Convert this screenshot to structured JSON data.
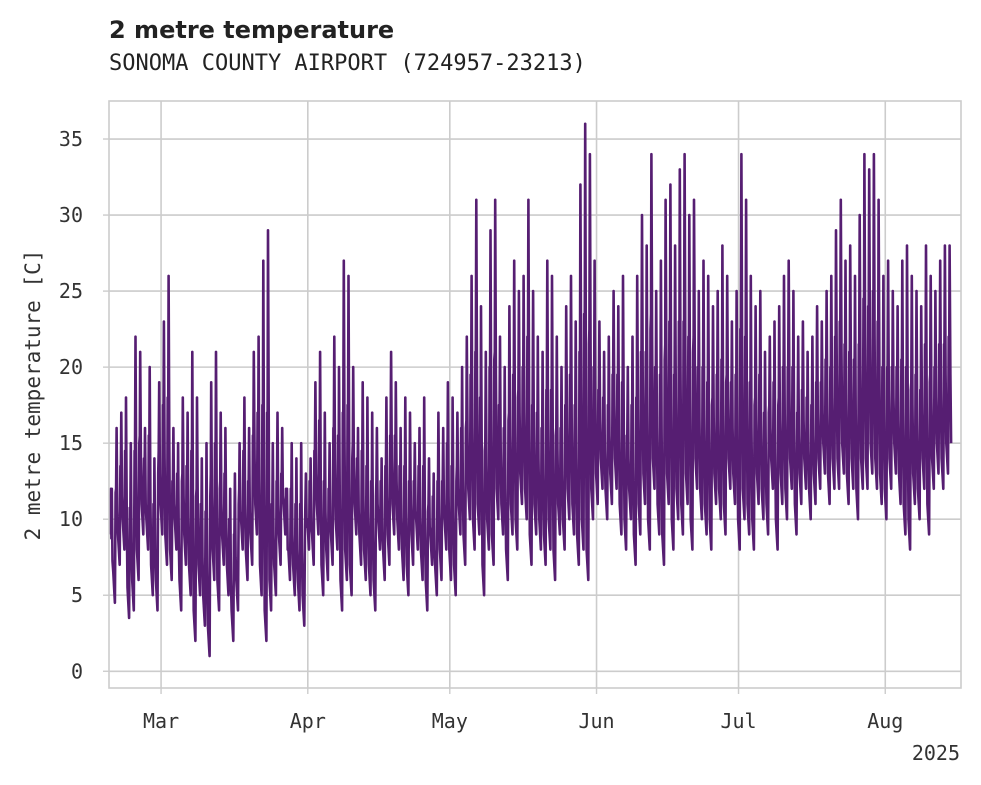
{
  "chart_data": {
    "type": "line",
    "title": "2 metre temperature",
    "subtitle": "SONOMA COUNTY AIRPORT (724957-23213)",
    "xlabel": "",
    "ylabel": "2 metre temperature [C]",
    "x_tick_labels": [
      "Mar",
      "Apr",
      "May",
      "Jun",
      "Jul",
      "Aug"
    ],
    "x_tick_dates": [
      "2025-03-01",
      "2025-04-01",
      "2025-05-01",
      "2025-06-01",
      "2025-07-01",
      "2025-08-01"
    ],
    "x_offset_label": "2025",
    "xlim": [
      "2025-02-18",
      "2025-08-17"
    ],
    "y_ticks": [
      0,
      5,
      10,
      15,
      20,
      25,
      30,
      35
    ],
    "ylim": [
      -1.1,
      37.5
    ],
    "grid": true,
    "series_color": "#561e72",
    "series": [
      {
        "x": [
          "2025-02-18",
          "2025-02-19",
          "2025-02-20",
          "2025-02-21",
          "2025-02-22",
          "2025-02-23",
          "2025-02-24",
          "2025-02-25",
          "2025-02-26",
          "2025-02-27",
          "2025-02-28",
          "2025-03-01",
          "2025-03-02",
          "2025-03-03",
          "2025-03-04",
          "2025-03-05",
          "2025-03-06",
          "2025-03-07",
          "2025-03-08",
          "2025-03-09",
          "2025-03-10",
          "2025-03-11",
          "2025-03-12",
          "2025-03-13",
          "2025-03-14",
          "2025-03-15",
          "2025-03-16",
          "2025-03-17",
          "2025-03-18",
          "2025-03-19",
          "2025-03-20",
          "2025-03-21",
          "2025-03-22",
          "2025-03-23",
          "2025-03-24",
          "2025-03-25",
          "2025-03-26",
          "2025-03-27",
          "2025-03-28",
          "2025-03-29",
          "2025-03-30",
          "2025-03-31",
          "2025-04-01",
          "2025-04-02",
          "2025-04-03",
          "2025-04-04",
          "2025-04-05",
          "2025-04-06",
          "2025-04-07",
          "2025-04-08",
          "2025-04-09",
          "2025-04-10",
          "2025-04-11",
          "2025-04-12",
          "2025-04-13",
          "2025-04-14",
          "2025-04-15",
          "2025-04-16",
          "2025-04-17",
          "2025-04-18",
          "2025-04-19",
          "2025-04-20",
          "2025-04-21",
          "2025-04-22",
          "2025-04-23",
          "2025-04-24",
          "2025-04-25",
          "2025-04-26",
          "2025-04-27",
          "2025-04-28",
          "2025-04-29",
          "2025-04-30",
          "2025-05-01",
          "2025-05-02",
          "2025-05-03",
          "2025-05-04",
          "2025-05-05",
          "2025-05-06",
          "2025-05-07",
          "2025-05-08",
          "2025-05-09",
          "2025-05-10",
          "2025-05-11",
          "2025-05-12",
          "2025-05-13",
          "2025-05-14",
          "2025-05-15",
          "2025-05-16",
          "2025-05-17",
          "2025-05-18",
          "2025-05-19",
          "2025-05-20",
          "2025-05-21",
          "2025-05-22",
          "2025-05-23",
          "2025-05-24",
          "2025-05-25",
          "2025-05-26",
          "2025-05-27",
          "2025-05-28",
          "2025-05-29",
          "2025-05-30",
          "2025-05-31",
          "2025-06-01",
          "2025-06-02",
          "2025-06-03",
          "2025-06-04",
          "2025-06-05",
          "2025-06-06",
          "2025-06-07",
          "2025-06-08",
          "2025-06-09",
          "2025-06-10",
          "2025-06-11",
          "2025-06-12",
          "2025-06-13",
          "2025-06-14",
          "2025-06-15",
          "2025-06-16",
          "2025-06-17",
          "2025-06-18",
          "2025-06-19",
          "2025-06-20",
          "2025-06-21",
          "2025-06-22",
          "2025-06-23",
          "2025-06-24",
          "2025-06-25",
          "2025-06-26",
          "2025-06-27",
          "2025-06-28",
          "2025-06-29",
          "2025-06-30",
          "2025-07-01",
          "2025-07-02",
          "2025-07-03",
          "2025-07-04",
          "2025-07-05",
          "2025-07-06",
          "2025-07-07",
          "2025-07-08",
          "2025-07-09",
          "2025-07-10",
          "2025-07-11",
          "2025-07-12",
          "2025-07-13",
          "2025-07-14",
          "2025-07-15",
          "2025-07-16",
          "2025-07-17",
          "2025-07-18",
          "2025-07-19",
          "2025-07-20",
          "2025-07-21",
          "2025-07-22",
          "2025-07-23",
          "2025-07-24",
          "2025-07-25",
          "2025-07-26",
          "2025-07-27",
          "2025-07-28",
          "2025-07-29",
          "2025-07-30",
          "2025-07-31",
          "2025-08-01",
          "2025-08-02",
          "2025-08-03",
          "2025-08-04",
          "2025-08-05",
          "2025-08-06",
          "2025-08-07",
          "2025-08-08",
          "2025-08-09",
          "2025-08-10",
          "2025-08-11",
          "2025-08-12",
          "2025-08-13",
          "2025-08-14",
          "2025-08-15",
          "2025-08-16"
        ],
        "daily_min": [
          9,
          4.5,
          7,
          8,
          3.5,
          4,
          6,
          9,
          8,
          5,
          4,
          9,
          7,
          6,
          8,
          4,
          7,
          5,
          2,
          5,
          3,
          1,
          6,
          4,
          7,
          5,
          2,
          4,
          8,
          6,
          7,
          9,
          5,
          2,
          4,
          5,
          7,
          9,
          6,
          5,
          4,
          3,
          8,
          7,
          9,
          5,
          6,
          7,
          8,
          4,
          6,
          5,
          9,
          7,
          6,
          5,
          4,
          8,
          6,
          7,
          9,
          8,
          6,
          5,
          7,
          8,
          6,
          4,
          7,
          5,
          6,
          8,
          6,
          5,
          9,
          7,
          10,
          8,
          9,
          5,
          8,
          7,
          10,
          9,
          6,
          9,
          8,
          11,
          10,
          7,
          9,
          8,
          7,
          8,
          6,
          9,
          8,
          10,
          9,
          7,
          8,
          6,
          10,
          11,
          12,
          10,
          11,
          12,
          9,
          8,
          10,
          7,
          9,
          11,
          8,
          12,
          9,
          7,
          11,
          8,
          10,
          9,
          11,
          8,
          12,
          10,
          9,
          8,
          11,
          10,
          9,
          12,
          11,
          8,
          10,
          9,
          8,
          11,
          10,
          9,
          12,
          8,
          11,
          10,
          12,
          9,
          11,
          12,
          10,
          11,
          12,
          13,
          11,
          12,
          12,
          13,
          11,
          12,
          10,
          12,
          12,
          13,
          12,
          11,
          10,
          12,
          13,
          11,
          9,
          8,
          11,
          10,
          12,
          9,
          12,
          13,
          12,
          13
        ],
        "daily_max": [
          12,
          16,
          17,
          18,
          15,
          22,
          21,
          16,
          20,
          14,
          19,
          23,
          26,
          16,
          15,
          18,
          17,
          21,
          18,
          14,
          15,
          19,
          21,
          17,
          16,
          12,
          13,
          15,
          18,
          16,
          21,
          22,
          27,
          29,
          15,
          17,
          16,
          12,
          15,
          14,
          15,
          13,
          14,
          19,
          21,
          17,
          15,
          22,
          20,
          27,
          26,
          20,
          16,
          19,
          18,
          17,
          16,
          14,
          18,
          21,
          19,
          16,
          18,
          17,
          15,
          16,
          18,
          14,
          13,
          17,
          16,
          19,
          18,
          17,
          20,
          22,
          26,
          31,
          24,
          21,
          29,
          31,
          22,
          20,
          24,
          27,
          25,
          26,
          31,
          25,
          22,
          21,
          27,
          26,
          22,
          20,
          24,
          26,
          23,
          32,
          36,
          34,
          27,
          23,
          21,
          22,
          25,
          24,
          26,
          20,
          22,
          26,
          30,
          28,
          34,
          25,
          27,
          31,
          32,
          28,
          33,
          34,
          30,
          31,
          25,
          27,
          26,
          24,
          25,
          28,
          26,
          23,
          25,
          34,
          31,
          26,
          24,
          25,
          21,
          22,
          23,
          24,
          26,
          27,
          25,
          22,
          23,
          21,
          22,
          24,
          23,
          25,
          26,
          29,
          31,
          27,
          28,
          26,
          30,
          34,
          33,
          34,
          31,
          26,
          27,
          25,
          24,
          27,
          28,
          26,
          25,
          24,
          28,
          26,
          25,
          27,
          28,
          28
        ]
      }
    ]
  }
}
